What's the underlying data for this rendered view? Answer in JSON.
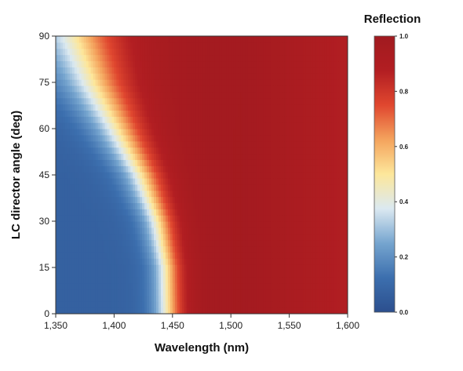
{
  "chart_data": {
    "type": "heatmap",
    "title": "",
    "xlabel": "Wavelength (nm)",
    "ylabel": "LC director angle (deg)",
    "xlim": [
      1350,
      1600
    ],
    "ylim": [
      0,
      90
    ],
    "x_ticks": [
      {
        "value": 1350,
        "label": "1,350"
      },
      {
        "value": 1400,
        "label": "1,400"
      },
      {
        "value": 1450,
        "label": "1,450"
      },
      {
        "value": 1500,
        "label": "1,500"
      },
      {
        "value": 1550,
        "label": "1,550"
      },
      {
        "value": 1600,
        "label": "1,600"
      }
    ],
    "y_ticks": [
      {
        "value": 0,
        "label": "0"
      },
      {
        "value": 15,
        "label": "15"
      },
      {
        "value": 30,
        "label": "30"
      },
      {
        "value": 45,
        "label": "45"
      },
      {
        "value": 60,
        "label": "60"
      },
      {
        "value": 75,
        "label": "75"
      },
      {
        "value": 90,
        "label": "90"
      }
    ],
    "colorbar": {
      "title": "Reflection",
      "range": [
        0.0,
        1.0
      ],
      "ticks": [
        {
          "value": 0.0,
          "label": "0.0"
        },
        {
          "value": 0.2,
          "label": "0.2"
        },
        {
          "value": 0.4,
          "label": "0.4"
        },
        {
          "value": 0.6,
          "label": "0.6"
        },
        {
          "value": 0.8,
          "label": "0.8"
        },
        {
          "value": 1.0,
          "label": "1.0"
        }
      ],
      "colormap": [
        "#2c4f8e",
        "#3c6fae",
        "#76a5cf",
        "#dbe9f1",
        "#fde79b",
        "#f4a35d",
        "#e0472f",
        "#b21e22",
        "#a11a1f"
      ]
    },
    "half_reflection_edge": {
      "angles": [
        0,
        15,
        30,
        45,
        60,
        75,
        90
      ],
      "wavelength_at_0_5": [
        1447,
        1446,
        1439,
        1425,
        1405,
        1385,
        1370
      ]
    },
    "band_edge_width_nm": [
      8,
      8,
      9,
      11,
      14,
      18,
      22
    ],
    "peak_reflection_at_1510": 0.98,
    "reflection_at_1600": 0.88
  }
}
